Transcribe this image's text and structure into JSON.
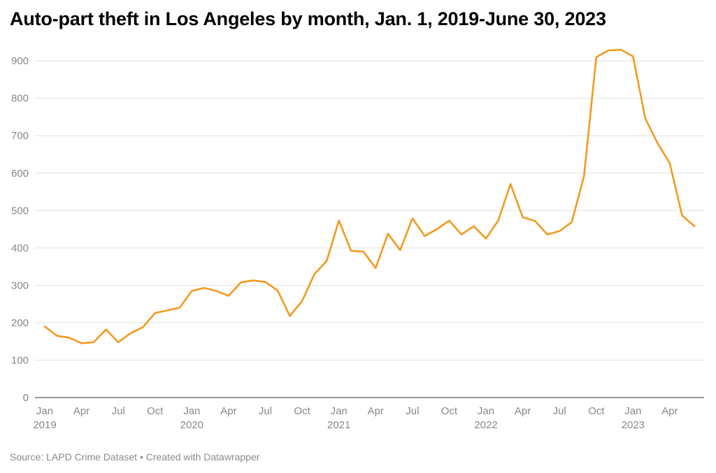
{
  "title": "Auto-part theft in Los Angeles by month, Jan. 1, 2019-June 30, 2023",
  "footer": {
    "source": "Source: LAPD Crime Dataset",
    "separator": " • ",
    "credit": "Created with Datawrapper"
  },
  "colors": {
    "line": "#f29a1f",
    "grid": "#e1e1e1",
    "baseline": "#333333",
    "tick_text": "#888888"
  },
  "chart_data": {
    "type": "line",
    "title": "Auto-part theft in Los Angeles by month, Jan. 1, 2019-June 30, 2023",
    "xlabel": "",
    "ylabel": "",
    "ylim": [
      0,
      960
    ],
    "y_ticks": [
      0,
      100,
      200,
      300,
      400,
      500,
      600,
      700,
      800,
      900
    ],
    "grid": true,
    "x_ticks": [
      {
        "index": 0,
        "label": "Jan",
        "year": "2019"
      },
      {
        "index": 3,
        "label": "Apr",
        "year": ""
      },
      {
        "index": 6,
        "label": "Jul",
        "year": ""
      },
      {
        "index": 9,
        "label": "Oct",
        "year": ""
      },
      {
        "index": 12,
        "label": "Jan",
        "year": "2020"
      },
      {
        "index": 15,
        "label": "Apr",
        "year": ""
      },
      {
        "index": 18,
        "label": "Jul",
        "year": ""
      },
      {
        "index": 21,
        "label": "Oct",
        "year": ""
      },
      {
        "index": 24,
        "label": "Jan",
        "year": "2021"
      },
      {
        "index": 27,
        "label": "Apr",
        "year": ""
      },
      {
        "index": 30,
        "label": "Jul",
        "year": ""
      },
      {
        "index": 33,
        "label": "Oct",
        "year": ""
      },
      {
        "index": 36,
        "label": "Jan",
        "year": "2022"
      },
      {
        "index": 39,
        "label": "Apr",
        "year": ""
      },
      {
        "index": 42,
        "label": "Jul",
        "year": ""
      },
      {
        "index": 45,
        "label": "Oct",
        "year": ""
      },
      {
        "index": 48,
        "label": "Jan",
        "year": "2023"
      },
      {
        "index": 51,
        "label": "Apr",
        "year": ""
      }
    ],
    "series": [
      {
        "values": [
          190,
          165,
          160,
          145,
          148,
          182,
          148,
          172,
          188,
          226,
          233,
          240,
          285,
          293,
          285,
          272,
          308,
          313,
          309,
          286,
          218,
          258,
          330,
          365,
          473,
          392,
          390,
          346,
          438,
          394,
          479,
          432,
          450,
          473,
          436,
          458,
          425,
          473,
          571,
          482,
          472,
          436,
          445,
          469,
          592,
          910,
          928,
          930,
          912,
          746,
          680,
          626,
          487,
          458
        ]
      }
    ]
  }
}
